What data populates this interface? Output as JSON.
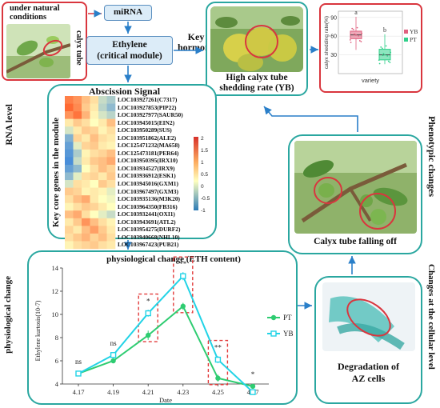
{
  "top_left": {
    "title": "under natural conditions",
    "calyx_label": "calyx tube"
  },
  "flow": {
    "mirna": "miRNA",
    "ethylene_line1": "Ethylene",
    "ethylene_line2": "(critical module)",
    "key_hormone_line1": "Key",
    "key_hormone_line2": "hormone"
  },
  "high_shedding": {
    "line1": "High calyx tube",
    "line2": "shedding rate (YB)"
  },
  "boxplot": {
    "ylabel": "calyx shedding rate(%)",
    "xlabel": "variety",
    "yticks": [
      "30",
      "60",
      "90"
    ],
    "letter_a": "a",
    "letter_b": "b",
    "legend": [
      {
        "name": "YB",
        "color": "#e0607e"
      },
      {
        "name": "PT",
        "color": "#2fd08a"
      }
    ],
    "groups": [
      {
        "name": "YB",
        "median": 62,
        "q1": 56,
        "q3": 68,
        "min": 38,
        "max": 91,
        "color": "#e0607e"
      },
      {
        "name": "PT",
        "median": 30,
        "q1": 22,
        "q3": 39,
        "min": 15,
        "max": 63,
        "color": "#2fd08a"
      }
    ]
  },
  "side_labels": {
    "rna_level": "RNA level",
    "phenotypic": "Phenotypic changes",
    "physiological": "physiological change",
    "cellular": "Changes at the cellular level"
  },
  "heatmap": {
    "title": "Abscission Signal",
    "side_label": "Key core genes in the module",
    "genes": [
      "LOC103927261(C7317)",
      "LOC103927853(PIP22)",
      "LOC103927977(SAUR50)",
      "LOC103945015(EIN2)",
      "LOC103950289(SUS)",
      "LOC103951862(ALE2)",
      "LOC125471232(MA658)",
      "LOC125473181(PER64)",
      "LOC103950395(IRX10)",
      "LOC103934527(IRX9)",
      "LOC103936912(ESK1)",
      "LOC103945016(GXM1)",
      "LOC103967497(GXM3)",
      "LOC103935136(M3K20)",
      "LOC103964350(FB316)",
      "LOC103932441(OXI1)",
      "LOC103943691(ATL2)",
      "LOC103954275(DURF2)",
      "LOC103940668(NHL10)",
      "LOC103967423(PUB21)"
    ],
    "matrix": [
      [
        1.2,
        1.0,
        0.6,
        0.3,
        -0.4,
        -0.6
      ],
      [
        1.4,
        1.1,
        0.5,
        0.2,
        -0.5,
        -0.8
      ],
      [
        1.0,
        1.3,
        0.7,
        0.1,
        -0.3,
        -0.5
      ],
      [
        0.2,
        0.5,
        0.3,
        0.0,
        0.2,
        0.6
      ],
      [
        -0.3,
        0.2,
        0.5,
        0.4,
        0.1,
        0.3
      ],
      [
        -0.9,
        0.4,
        0.2,
        0.6,
        0.3,
        0.2
      ],
      [
        -1.1,
        -0.2,
        0.4,
        0.5,
        0.2,
        0.1
      ],
      [
        -1.2,
        -0.6,
        0.1,
        0.3,
        0.4,
        0.6
      ],
      [
        -1.3,
        -0.4,
        0.2,
        0.5,
        0.6,
        0.8
      ],
      [
        -1.1,
        -0.8,
        0.0,
        0.3,
        0.6,
        0.4
      ],
      [
        -0.8,
        -0.2,
        0.3,
        0.4,
        0.2,
        0.5
      ],
      [
        -0.3,
        0.3,
        0.2,
        0.0,
        0.5,
        0.3
      ],
      [
        0.5,
        0.4,
        0.1,
        0.2,
        0.1,
        -0.2
      ],
      [
        0.3,
        0.6,
        0.8,
        0.2,
        0.0,
        -0.1
      ],
      [
        0.1,
        0.3,
        0.5,
        0.4,
        0.2,
        0.0
      ],
      [
        0.6,
        0.8,
        0.3,
        0.0,
        -0.2,
        -0.4
      ],
      [
        0.2,
        0.5,
        1.0,
        0.6,
        0.3,
        0.1
      ],
      [
        0.4,
        0.2,
        0.6,
        0.9,
        0.5,
        0.2
      ],
      [
        0.3,
        0.5,
        0.7,
        0.4,
        0.6,
        0.3
      ],
      [
        0.1,
        0.3,
        0.4,
        0.5,
        0.3,
        0.2
      ]
    ],
    "scale_ticks": [
      "2",
      "1.5",
      "1",
      "0.5",
      "0",
      "-0.5",
      "-1"
    ]
  },
  "calyx_fall": {
    "caption": "Calyx tube falling off"
  },
  "degradation": {
    "line1": "Degradation of",
    "line2": "AZ cells"
  },
  "chart_data": {
    "type": "line",
    "title": "physiological change (ETH content)",
    "xlabel": "Date",
    "ylabel": "Ethylene kurtosis(10-7)",
    "categories": [
      "4.17",
      "4.19",
      "4.21",
      "4.23",
      "4.25",
      "4.27"
    ],
    "yticks": [
      "4",
      "6",
      "8",
      "10",
      "12",
      "14"
    ],
    "ylim": [
      4,
      14
    ],
    "series": [
      {
        "name": "PT",
        "values": [
          4.9,
          6.0,
          8.2,
          10.7,
          4.5,
          3.8
        ],
        "errors": [
          0.15,
          0.2,
          0.4,
          0.3,
          0.3,
          0.15
        ],
        "color": "#2ecc71",
        "marker": "circle"
      },
      {
        "name": "YB",
        "values": [
          4.9,
          6.5,
          10.1,
          13.3,
          6.1,
          3.3
        ],
        "errors": [
          0.15,
          0.25,
          0.3,
          0.35,
          0.3,
          0.15
        ],
        "color": "#22d3e6",
        "marker": "square"
      }
    ],
    "significance": [
      "ns",
      "ns",
      "*",
      "**",
      "**",
      "*"
    ],
    "highlighted": [
      "4.21",
      "4.23",
      "4.25"
    ]
  }
}
